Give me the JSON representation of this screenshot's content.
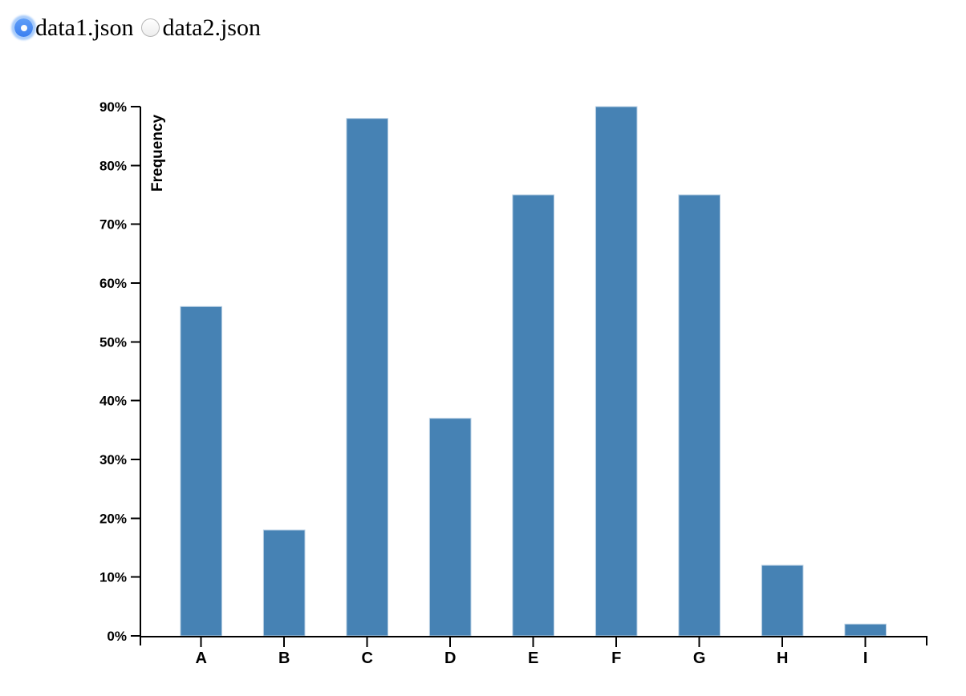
{
  "controls": {
    "dataset_options": [
      {
        "label": "data1.json",
        "checked": true
      },
      {
        "label": "data2.json",
        "checked": false
      }
    ]
  },
  "chart_data": {
    "type": "bar",
    "title": "",
    "xlabel": "",
    "ylabel": "Frequency",
    "categories": [
      "A",
      "B",
      "C",
      "D",
      "E",
      "F",
      "G",
      "H",
      "I"
    ],
    "values": [
      56,
      18,
      88,
      37,
      75,
      90,
      75,
      12,
      2
    ],
    "unit": "percent",
    "ylim": [
      0,
      90
    ],
    "ytick_step": 10,
    "ytick_labels": [
      "0%",
      "10%",
      "20%",
      "30%",
      "40%",
      "50%",
      "60%",
      "70%",
      "80%",
      "90%"
    ],
    "grid": false,
    "legend": "none",
    "colors": {
      "bar_fill": "#4682b4",
      "bar_edge": "#b9d0e4",
      "axis": "#000000",
      "text": "#000000"
    }
  }
}
